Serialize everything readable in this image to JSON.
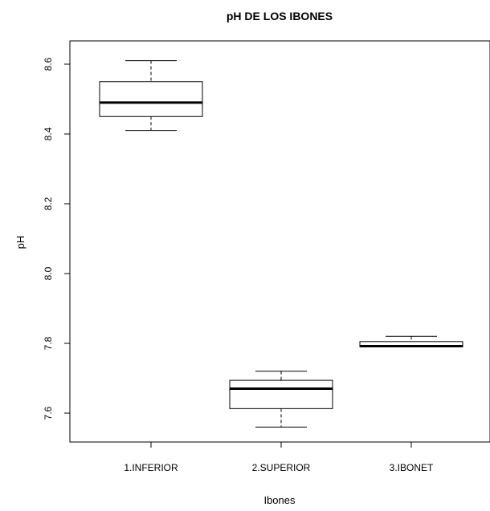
{
  "chart_data": {
    "type": "boxplot",
    "title": "pH DE LOS IBONES",
    "xlabel": "Ibones",
    "ylabel": "pH",
    "ylim": [
      7.55,
      8.65
    ],
    "yticks": [
      "7.6",
      "7.8",
      "8.0",
      "8.2",
      "8.4",
      "8.6"
    ],
    "grid": false,
    "categories": [
      "1.INFERIOR",
      "2.SUPERIOR",
      "3.IBONET"
    ],
    "boxes": [
      {
        "category": "1.INFERIOR",
        "min": 8.41,
        "q1": 8.45,
        "median": 8.49,
        "q3": 8.55,
        "max": 8.61
      },
      {
        "category": "2.SUPERIOR",
        "min": 7.56,
        "q1": 7.613,
        "median": 7.67,
        "q3": 7.694,
        "max": 7.72
      },
      {
        "category": "3.IBONET",
        "min": 7.79,
        "q1": 7.79,
        "median": 7.792,
        "q3": 7.805,
        "max": 7.82
      }
    ]
  }
}
